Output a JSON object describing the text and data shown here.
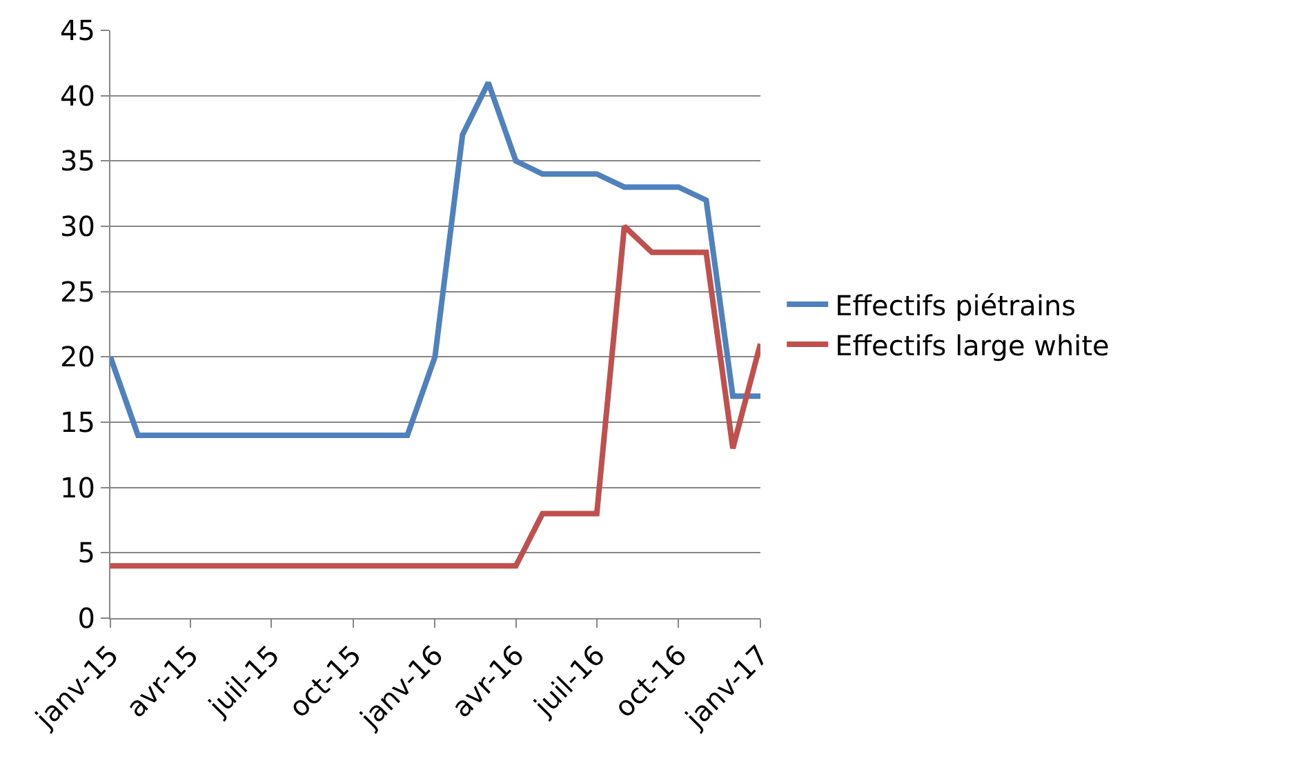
{
  "chart_data": {
    "type": "line",
    "x": [
      "2015-01",
      "2015-02",
      "2015-03",
      "2015-04",
      "2015-05",
      "2015-06",
      "2015-07",
      "2015-08",
      "2015-09",
      "2015-10",
      "2015-11",
      "2015-12",
      "2016-01",
      "2016-02",
      "2016-03",
      "2016-04",
      "2016-05",
      "2016-06",
      "2016-07",
      "2016-08",
      "2016-09",
      "2016-10",
      "2016-11",
      "2016-12",
      "2017-01"
    ],
    "series": [
      {
        "name": "Effectifs piétrains",
        "color": "#4f81bd",
        "values": [
          20,
          14,
          14,
          14,
          14,
          14,
          14,
          14,
          14,
          14,
          14,
          14,
          20,
          37,
          41,
          35,
          34,
          34,
          34,
          33,
          33,
          33,
          32,
          17,
          17
        ]
      },
      {
        "name": "Effectifs large white",
        "color": "#c0504d",
        "values": [
          4,
          4,
          4,
          4,
          4,
          4,
          4,
          4,
          4,
          4,
          4,
          4,
          4,
          4,
          4,
          4,
          8,
          8,
          8,
          30,
          28,
          28,
          28,
          13,
          21
        ]
      }
    ],
    "xlim": [
      "2015-01",
      "2017-01"
    ],
    "xticks": [
      {
        "value": "2015-01",
        "label": "janv-15"
      },
      {
        "value": "2015-04",
        "label": "avr-15"
      },
      {
        "value": "2015-07",
        "label": "juil-15"
      },
      {
        "value": "2015-10",
        "label": "oct-15"
      },
      {
        "value": "2016-01",
        "label": "janv-16"
      },
      {
        "value": "2016-04",
        "label": "avr-16"
      },
      {
        "value": "2016-07",
        "label": "juil-16"
      },
      {
        "value": "2016-10",
        "label": "oct-16"
      },
      {
        "value": "2017-01",
        "label": "janv-17"
      }
    ],
    "ylim": [
      0,
      45
    ],
    "yticks": [
      0,
      5,
      10,
      15,
      20,
      25,
      30,
      35,
      40,
      45
    ],
    "grid": "y",
    "legend": "right",
    "marker": "none",
    "line_style": "solid"
  }
}
